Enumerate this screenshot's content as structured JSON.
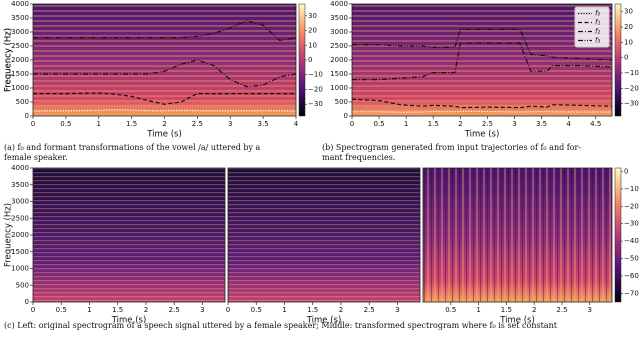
{
  "chart_data": [
    {
      "type": "line",
      "xlabel": "Time (s)",
      "ylabel": "Frequency (Hz)",
      "xlim": [
        0,
        4
      ],
      "xticks": [
        0,
        0.5,
        1,
        1.5,
        2,
        2.5,
        3,
        3.5,
        4
      ],
      "ylim": [
        0,
        4000
      ],
      "yticks": [
        0,
        500,
        1000,
        1500,
        2000,
        2500,
        3000,
        3500,
        4000
      ],
      "colorbar": {
        "lim": [
          -38,
          38
        ],
        "ticks": [
          30,
          20,
          10,
          0,
          {
            "value": -10,
            "label": "−10"
          },
          {
            "value": -20,
            "label": "−20"
          },
          {
            "value": -30,
            "label": "−30"
          }
        ]
      },
      "x": [
        0,
        0.5,
        1,
        1.25,
        1.5,
        1.75,
        2,
        2.25,
        2.5,
        2.75,
        3,
        3.25,
        3.5,
        3.75,
        4
      ],
      "series": [
        {
          "color": "#ffffff",
          "style": "dotted",
          "values": [
            180,
            185,
            200,
            230,
            210,
            190,
            185,
            200,
            190,
            185,
            180,
            185,
            190,
            185,
            180
          ]
        },
        {
          "color": "#111111",
          "style": "dashed",
          "values": [
            800,
            800,
            820,
            780,
            700,
            550,
            420,
            500,
            800,
            800,
            800,
            800,
            800,
            800,
            800
          ]
        },
        {
          "color": "#111111",
          "style": "dashdot",
          "values": [
            1500,
            1500,
            1500,
            1500,
            1500,
            1500,
            1600,
            1850,
            2000,
            1800,
            1300,
            1050,
            1100,
            1400,
            1500
          ]
        },
        {
          "color": "#111111",
          "style": "dashdotdot",
          "values": [
            2800,
            2800,
            2800,
            2800,
            2800,
            2800,
            2800,
            2800,
            2850,
            2950,
            3150,
            3400,
            3250,
            2700,
            2800
          ]
        }
      ]
    },
    {
      "type": "line",
      "xlabel": "Time (s)",
      "ylabel": "Frequency (Hz)",
      "xlim": [
        0,
        4.8
      ],
      "xticks": [
        0,
        0.5,
        1,
        1.5,
        2,
        2.5,
        3,
        3.5,
        4,
        4.5
      ],
      "ylim": [
        0,
        4000
      ],
      "yticks": [
        0,
        500,
        1000,
        1500,
        2000,
        2500,
        3000,
        3500,
        4000
      ],
      "colorbar": {
        "lim": [
          -38,
          35
        ],
        "ticks": [
          30,
          20,
          10,
          0,
          {
            "value": -10,
            "label": "−10"
          },
          {
            "value": -20,
            "label": "−20"
          },
          {
            "value": -30,
            "label": "−30"
          }
        ]
      },
      "legend": "upper right",
      "x": [
        0,
        0.5,
        0.9,
        1.3,
        1.5,
        1.9,
        2.0,
        2.5,
        3.1,
        3.3,
        3.6,
        3.7,
        4.2,
        4.8
      ],
      "series": [
        {
          "name": "f₀",
          "color": "#ffffff",
          "style": "dotted",
          "values": [
            150,
            150,
            130,
            140,
            160,
            150,
            170,
            160,
            140,
            150,
            160,
            150,
            140,
            140
          ]
        },
        {
          "name": "f₁",
          "color": "#111111",
          "style": "dashed",
          "values": [
            600,
            550,
            400,
            350,
            380,
            350,
            300,
            320,
            300,
            350,
            320,
            400,
            380,
            350
          ]
        },
        {
          "name": "f₂",
          "color": "#111111",
          "style": "dashdot",
          "values": [
            1300,
            1300,
            1350,
            1400,
            1550,
            1550,
            2600,
            2600,
            2600,
            1600,
            1600,
            1800,
            1800,
            1750
          ]
        },
        {
          "name": "f₃",
          "color": "#111111",
          "style": "dashdotdot",
          "values": [
            2550,
            2550,
            2500,
            2500,
            2450,
            2450,
            3100,
            3100,
            3100,
            2200,
            2150,
            2100,
            2050,
            2000
          ]
        }
      ]
    },
    {
      "type": "spectrogram",
      "xlabel": "Time (s)",
      "ylabel": "Frequency (Hz)",
      "xlim": [
        0,
        3.4
      ],
      "xticks": [
        0,
        0.5,
        1,
        1.5,
        2,
        2.5,
        3
      ],
      "ylim": [
        0,
        4000
      ],
      "yticks": [
        0,
        500,
        1000,
        1500,
        2000,
        2500,
        3000,
        3500,
        4000
      ]
    },
    {
      "type": "spectrogram",
      "xlabel": "Time (s)",
      "xlim": [
        0,
        3.4
      ],
      "xticks": [
        0,
        0.5,
        1,
        1.5,
        2,
        2.5,
        3
      ],
      "ylim": [
        0,
        4000
      ]
    },
    {
      "type": "spectrogram",
      "xlabel": "Time (s)",
      "xlim": [
        0,
        3.4
      ],
      "xticks": [
        0.5,
        1,
        1.5,
        2,
        2.5,
        3
      ],
      "ylim": [
        0,
        4000
      ],
      "colorbar": {
        "lim": [
          -75,
          2
        ],
        "ticks": [
          0,
          {
            "value": -10,
            "label": "−10"
          },
          {
            "value": -20,
            "label": "−20"
          },
          {
            "value": -30,
            "label": "−30"
          },
          {
            "value": -40,
            "label": "−40"
          },
          {
            "value": -50,
            "label": "−50"
          },
          {
            "value": -60,
            "label": "−60"
          },
          {
            "value": -70,
            "label": "−70"
          }
        ]
      }
    }
  ],
  "captions": {
    "a": [
      "(a) f₀ and formant transformations of the vowel /a/ uttered by a",
      "female speaker."
    ],
    "b": [
      "(b) Spectrogram generated from input trajectories of f₀ and for-",
      "mant frequencies."
    ],
    "c": [
      "(c) Left: original spectrogram of a speech signal uttered by a female speaker; Middle: transformed spectrogram where f₀ is set constant"
    ]
  }
}
